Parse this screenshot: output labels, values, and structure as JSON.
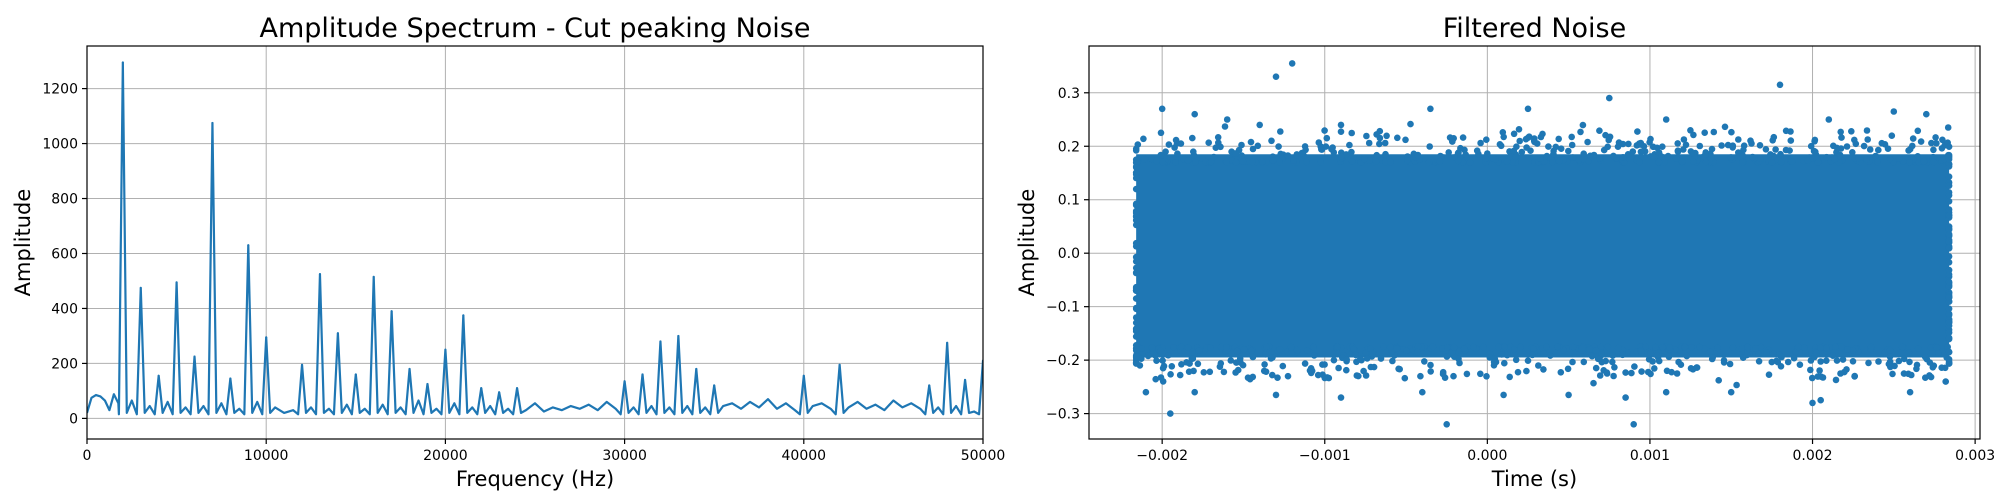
{
  "colors": {
    "series": "#1f77b4",
    "grid": "#b0b0b0",
    "axis": "#000000",
    "background": "#ffffff"
  },
  "chart_data": [
    {
      "type": "line",
      "title": "Amplitude Spectrum - Cut peaking Noise",
      "xlabel": "Frequency (Hz)",
      "ylabel": "Amplitude",
      "xlim": [
        0,
        50000
      ],
      "ylim": [
        -75,
        1355
      ],
      "grid": true,
      "x_ticks": [
        0,
        10000,
        20000,
        30000,
        40000,
        50000
      ],
      "x_tick_labels": [
        "0",
        "10000",
        "20000",
        "30000",
        "40000",
        "50000"
      ],
      "y_ticks": [
        0,
        200,
        400,
        600,
        800,
        1000,
        1200
      ],
      "y_tick_labels": [
        "0",
        "200",
        "400",
        "600",
        "800",
        "1000",
        "1200"
      ],
      "baseline_points": [
        [
          0,
          20
        ],
        [
          250,
          75
        ],
        [
          500,
          85
        ],
        [
          750,
          80
        ],
        [
          1000,
          65
        ],
        [
          1250,
          30
        ],
        [
          1500,
          88
        ],
        [
          1750,
          55
        ],
        [
          2500,
          65
        ],
        [
          3500,
          45
        ],
        [
          4500,
          60
        ],
        [
          5500,
          40
        ],
        [
          6500,
          45
        ],
        [
          7500,
          55
        ],
        [
          8500,
          35
        ],
        [
          9500,
          60
        ],
        [
          10500,
          40
        ],
        [
          11000,
          20
        ],
        [
          11500,
          30
        ],
        [
          12500,
          40
        ],
        [
          13500,
          35
        ],
        [
          14500,
          50
        ],
        [
          15500,
          35
        ],
        [
          16500,
          50
        ],
        [
          17500,
          40
        ],
        [
          18500,
          65
        ],
        [
          19500,
          35
        ],
        [
          20500,
          55
        ],
        [
          21500,
          40
        ],
        [
          22000,
          60
        ],
        [
          22500,
          45
        ],
        [
          23000,
          75
        ],
        [
          23500,
          35
        ],
        [
          24000,
          70
        ],
        [
          24500,
          30
        ],
        [
          25000,
          55
        ],
        [
          25500,
          25
        ],
        [
          26000,
          40
        ],
        [
          26500,
          30
        ],
        [
          27000,
          45
        ],
        [
          27500,
          35
        ],
        [
          28000,
          50
        ],
        [
          28500,
          30
        ],
        [
          29000,
          60
        ],
        [
          29500,
          35
        ],
        [
          30500,
          40
        ],
        [
          31000,
          60
        ],
        [
          31500,
          45
        ],
        [
          32500,
          40
        ],
        [
          33500,
          45
        ],
        [
          34000,
          65
        ],
        [
          34500,
          40
        ],
        [
          35000,
          70
        ],
        [
          35500,
          45
        ],
        [
          36000,
          55
        ],
        [
          36500,
          35
        ],
        [
          37000,
          60
        ],
        [
          37500,
          40
        ],
        [
          38000,
          70
        ],
        [
          38500,
          35
        ],
        [
          39000,
          55
        ],
        [
          39500,
          30
        ],
        [
          40500,
          45
        ],
        [
          41000,
          55
        ],
        [
          41500,
          35
        ],
        [
          42500,
          40
        ],
        [
          43000,
          60
        ],
        [
          43500,
          35
        ],
        [
          44000,
          50
        ],
        [
          44500,
          30
        ],
        [
          45000,
          65
        ],
        [
          45500,
          40
        ],
        [
          46000,
          55
        ],
        [
          46500,
          35
        ],
        [
          47000,
          60
        ],
        [
          47500,
          40
        ],
        [
          48500,
          45
        ],
        [
          49000,
          55
        ],
        [
          49500,
          25
        ],
        [
          49800,
          20
        ],
        [
          50000,
          10
        ]
      ],
      "peaks": [
        {
          "x": 2000,
          "y": 1295
        },
        {
          "x": 3000,
          "y": 475
        },
        {
          "x": 4000,
          "y": 155
        },
        {
          "x": 5000,
          "y": 495
        },
        {
          "x": 6000,
          "y": 225
        },
        {
          "x": 7000,
          "y": 1075
        },
        {
          "x": 8000,
          "y": 145
        },
        {
          "x": 9000,
          "y": 630
        },
        {
          "x": 10000,
          "y": 295
        },
        {
          "x": 12000,
          "y": 195
        },
        {
          "x": 13000,
          "y": 525
        },
        {
          "x": 14000,
          "y": 310
        },
        {
          "x": 15000,
          "y": 160
        },
        {
          "x": 16000,
          "y": 515
        },
        {
          "x": 17000,
          "y": 390
        },
        {
          "x": 18000,
          "y": 180
        },
        {
          "x": 19000,
          "y": 125
        },
        {
          "x": 20000,
          "y": 250
        },
        {
          "x": 21000,
          "y": 375
        },
        {
          "x": 22000,
          "y": 110
        },
        {
          "x": 23000,
          "y": 95
        },
        {
          "x": 24000,
          "y": 110
        },
        {
          "x": 30000,
          "y": 135
        },
        {
          "x": 31000,
          "y": 160
        },
        {
          "x": 32000,
          "y": 280
        },
        {
          "x": 33000,
          "y": 300
        },
        {
          "x": 34000,
          "y": 180
        },
        {
          "x": 35000,
          "y": 120
        },
        {
          "x": 40000,
          "y": 155
        },
        {
          "x": 42000,
          "y": 195
        },
        {
          "x": 47000,
          "y": 120
        },
        {
          "x": 48000,
          "y": 275
        },
        {
          "x": 49000,
          "y": 140
        },
        {
          "x": 50000,
          "y": 210
        }
      ]
    },
    {
      "type": "scatter",
      "title": "Filtered Noise",
      "xlabel": "Time (s)",
      "ylabel": "Amplitude",
      "xlim": [
        -0.00245,
        0.00303
      ],
      "ylim": [
        -0.3475,
        0.3875
      ],
      "grid": true,
      "x_ticks": [
        -0.002,
        -0.001,
        0.0,
        0.001,
        0.002,
        0.003
      ],
      "x_tick_labels": [
        "−0.002",
        "−0.001",
        "0.000",
        "0.001",
        "0.002",
        "0.003"
      ],
      "y_ticks": [
        -0.3,
        -0.2,
        -0.1,
        0.0,
        0.1,
        0.2,
        0.3
      ],
      "y_tick_labels": [
        "−0.3",
        "−0.2",
        "−0.1",
        "0.0",
        "0.1",
        "0.2",
        "0.3"
      ],
      "dense_band": {
        "x_range": [
          -0.00216,
          0.00284
        ],
        "y_range": [
          -0.21,
          0.2
        ]
      },
      "outlier_points": [
        [
          -0.002,
          0.27
        ],
        [
          -0.0018,
          0.26
        ],
        [
          -0.0016,
          0.25
        ],
        [
          -0.0014,
          0.24
        ],
        [
          -0.0013,
          0.33
        ],
        [
          -0.0012,
          0.355
        ],
        [
          -0.0009,
          0.24
        ],
        [
          -0.00035,
          0.27
        ],
        [
          0.00025,
          0.27
        ],
        [
          0.00075,
          0.29
        ],
        [
          0.0011,
          0.25
        ],
        [
          0.0018,
          0.315
        ],
        [
          0.0021,
          0.25
        ],
        [
          0.0025,
          0.265
        ],
        [
          0.0027,
          0.26
        ],
        [
          -0.0021,
          -0.26
        ],
        [
          -0.00195,
          -0.3
        ],
        [
          -0.0018,
          -0.26
        ],
        [
          -0.0013,
          -0.265
        ],
        [
          -0.0009,
          -0.27
        ],
        [
          -0.0004,
          -0.26
        ],
        [
          -0.00025,
          -0.32
        ],
        [
          0.0001,
          -0.265
        ],
        [
          0.0005,
          -0.265
        ],
        [
          0.00085,
          -0.27
        ],
        [
          0.0009,
          -0.32
        ],
        [
          0.0011,
          -0.26
        ],
        [
          0.0015,
          -0.26
        ],
        [
          0.002,
          -0.28
        ],
        [
          0.00205,
          -0.275
        ],
        [
          0.0026,
          -0.26
        ]
      ]
    }
  ]
}
